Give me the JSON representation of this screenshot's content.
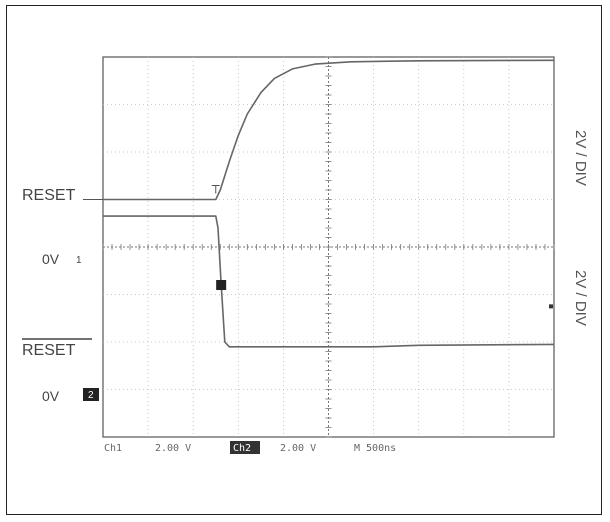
{
  "chart_data": {
    "type": "line",
    "title": "",
    "subtitle": "",
    "x": {
      "divisions": 10,
      "label": ""
    },
    "y": {
      "divisions": 8,
      "label": ""
    },
    "grid": true,
    "series": [
      {
        "name": "RESET",
        "zero_label": "0V",
        "channel": "1",
        "scale_label": "2V / DIV",
        "ground_div": 3.0,
        "points": [
          [
            0,
            0
          ],
          [
            2.5,
            0
          ],
          [
            2.6,
            0.2
          ],
          [
            2.8,
            0.8
          ],
          [
            3.0,
            1.35
          ],
          [
            3.2,
            1.8
          ],
          [
            3.5,
            2.25
          ],
          [
            3.8,
            2.55
          ],
          [
            4.2,
            2.75
          ],
          [
            4.7,
            2.85
          ],
          [
            5.5,
            2.9
          ],
          [
            7,
            2.92
          ],
          [
            10,
            2.93
          ]
        ]
      },
      {
        "name": "RESET",
        "overline": true,
        "zero_label": "0V",
        "channel": "2",
        "scale_label": "2V / DIV",
        "ground_div": 6.1,
        "points": [
          [
            0,
            2.75
          ],
          [
            2.5,
            2.75
          ],
          [
            2.55,
            2.5
          ],
          [
            2.62,
            1.3
          ],
          [
            2.7,
            0.1
          ],
          [
            2.8,
            0
          ],
          [
            6,
            0
          ],
          [
            7,
            0.03
          ],
          [
            10,
            0.05
          ]
        ]
      }
    ]
  },
  "statusbar": {
    "ch1_label": "Ch1",
    "ch1_value": "2.00 V",
    "ch2_label": "Ch2",
    "ch2_value": "2.00 V",
    "timebase": "M 500ns"
  }
}
